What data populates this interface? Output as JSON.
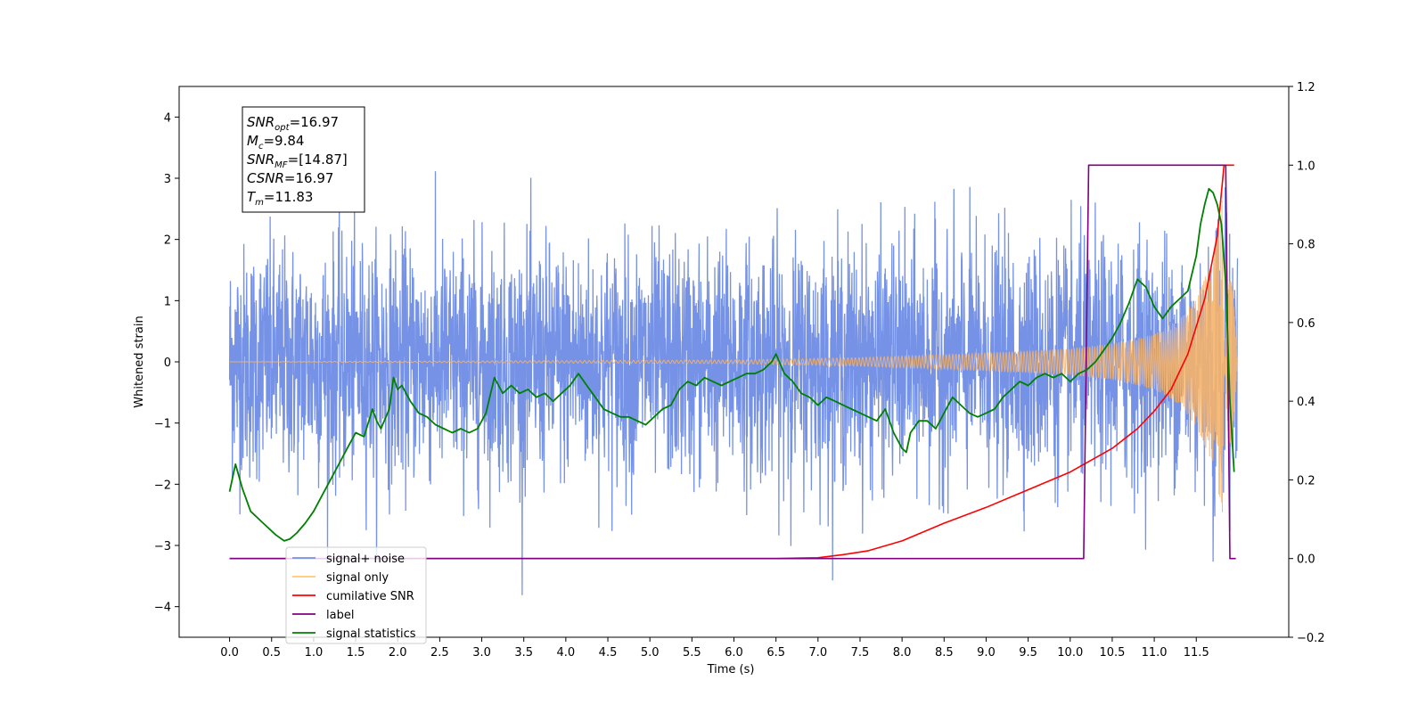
{
  "chart_data": {
    "type": "line",
    "title": "",
    "xlabel": "Time (s)",
    "ylabel": "Whitened strain",
    "xlim": [
      -0.6,
      12.6
    ],
    "ylim": [
      -4.5,
      4.5
    ],
    "y2lim": [
      -0.2,
      1.2
    ],
    "grid": false,
    "legend_placement": "lower-left",
    "x_ticks": [
      "0.0",
      "0.5",
      "1.0",
      "1.5",
      "2.0",
      "2.5",
      "3.0",
      "3.5",
      "4.0",
      "4.5",
      "5.0",
      "5.5",
      "6.0",
      "6.5",
      "7.0",
      "7.5",
      "8.0",
      "8.5",
      "9.0",
      "9.5",
      "10.0",
      "10.5",
      "11.0",
      "11.5"
    ],
    "y_ticks": [
      "−4",
      "−3",
      "−2",
      "−1",
      "0",
      "1",
      "2",
      "3",
      "4"
    ],
    "y2_ticks": [
      "−0.2",
      "0.0",
      "0.2",
      "0.4",
      "0.6",
      "0.8",
      "1.0",
      "1.2"
    ],
    "annotation": {
      "lines": [
        {
          "base": "SNR",
          "sub": "opt",
          "value": "=16.97"
        },
        {
          "base": "M",
          "sub": "c",
          "value": "=9.84"
        },
        {
          "base": "SNR",
          "sub": "MF",
          "value": "=[14.87]"
        },
        {
          "base": "CSNR",
          "sub": "",
          "value": "=16.97"
        },
        {
          "base": "T",
          "sub": "m",
          "value": "=11.83"
        }
      ]
    },
    "series": [
      {
        "name": "signal+ noise",
        "color": "#7592e6",
        "axis": "left",
        "description_values": {
          "t_start": 0.0,
          "t_end": 11.99,
          "noise_sigma": 1.0,
          "peak_max": 4.12,
          "peak_min": -4.07
        }
      },
      {
        "name": "signal only",
        "color": "#f5b36a",
        "axis": "left",
        "description_values": {
          "t_start": 0.0,
          "t_end": 11.99,
          "merger_time": 11.83,
          "envelope_points": {
            "t": [
              0.0,
              6.0,
              7.5,
              8.5,
              9.5,
              10.0,
              10.5,
              11.0,
              11.3,
              11.5,
              11.7,
              11.8,
              11.85,
              11.99
            ],
            "amp": [
              0.0,
              0.03,
              0.07,
              0.12,
              0.18,
              0.22,
              0.3,
              0.45,
              0.7,
              1.05,
              1.7,
              2.6,
              2.9,
              0.0
            ]
          }
        }
      },
      {
        "name": "cumilative SNR",
        "color": "#ff0000",
        "axis": "right",
        "t": [
          0.0,
          6.5,
          7.0,
          7.3,
          7.6,
          8.0,
          8.5,
          9.0,
          9.5,
          10.0,
          10.5,
          10.8,
          11.0,
          11.2,
          11.4,
          11.6,
          11.75,
          11.83,
          11.95
        ],
        "values": [
          0.0,
          0.0,
          0.002,
          0.01,
          0.02,
          0.045,
          0.09,
          0.13,
          0.175,
          0.22,
          0.28,
          0.33,
          0.375,
          0.43,
          0.52,
          0.66,
          0.82,
          1.0,
          1.0
        ]
      },
      {
        "name": "label",
        "color": "#800080",
        "axis": "right",
        "t": [
          0.0,
          10.16,
          10.22,
          11.85,
          11.9,
          11.97
        ],
        "values": [
          0.0,
          0.0,
          1.0,
          1.0,
          0.0,
          0.0
        ]
      },
      {
        "name": "signal statistics",
        "color": "#008000",
        "axis": "right",
        "t": [
          0.0,
          0.07,
          0.15,
          0.25,
          0.4,
          0.55,
          0.65,
          0.72,
          0.8,
          0.9,
          1.0,
          1.1,
          1.25,
          1.4,
          1.5,
          1.6,
          1.7,
          1.75,
          1.8,
          1.9,
          1.95,
          2.0,
          2.05,
          2.15,
          2.25,
          2.35,
          2.45,
          2.55,
          2.65,
          2.75,
          2.85,
          2.95,
          3.05,
          3.15,
          3.25,
          3.35,
          3.45,
          3.55,
          3.65,
          3.75,
          3.85,
          3.95,
          4.05,
          4.15,
          4.25,
          4.35,
          4.45,
          4.55,
          4.65,
          4.75,
          4.85,
          4.95,
          5.05,
          5.15,
          5.25,
          5.35,
          5.45,
          5.55,
          5.65,
          5.75,
          5.85,
          5.95,
          6.05,
          6.15,
          6.25,
          6.35,
          6.45,
          6.5,
          6.6,
          6.7,
          6.8,
          6.9,
          7.0,
          7.1,
          7.2,
          7.3,
          7.4,
          7.5,
          7.6,
          7.7,
          7.8,
          7.9,
          8.0,
          8.05,
          8.1,
          8.2,
          8.3,
          8.4,
          8.5,
          8.6,
          8.7,
          8.8,
          8.9,
          9.0,
          9.1,
          9.2,
          9.3,
          9.4,
          9.5,
          9.6,
          9.7,
          9.8,
          9.9,
          10.0,
          10.1,
          10.2,
          10.3,
          10.4,
          10.5,
          10.6,
          10.7,
          10.8,
          10.9,
          11.0,
          11.1,
          11.2,
          11.3,
          11.4,
          11.5,
          11.55,
          11.6,
          11.65,
          11.7,
          11.75,
          11.8,
          11.85,
          11.9,
          11.95
        ],
        "values": [
          0.17,
          0.24,
          0.18,
          0.12,
          0.09,
          0.06,
          0.045,
          0.05,
          0.065,
          0.09,
          0.12,
          0.16,
          0.22,
          0.28,
          0.32,
          0.31,
          0.38,
          0.35,
          0.33,
          0.38,
          0.46,
          0.43,
          0.44,
          0.4,
          0.37,
          0.36,
          0.34,
          0.33,
          0.32,
          0.33,
          0.32,
          0.33,
          0.37,
          0.46,
          0.42,
          0.44,
          0.42,
          0.43,
          0.41,
          0.42,
          0.4,
          0.42,
          0.44,
          0.47,
          0.44,
          0.41,
          0.38,
          0.37,
          0.36,
          0.36,
          0.35,
          0.34,
          0.36,
          0.38,
          0.39,
          0.43,
          0.45,
          0.44,
          0.46,
          0.45,
          0.44,
          0.45,
          0.46,
          0.47,
          0.47,
          0.48,
          0.5,
          0.52,
          0.47,
          0.45,
          0.42,
          0.41,
          0.39,
          0.41,
          0.4,
          0.39,
          0.38,
          0.37,
          0.36,
          0.35,
          0.38,
          0.32,
          0.28,
          0.27,
          0.32,
          0.35,
          0.35,
          0.33,
          0.37,
          0.41,
          0.39,
          0.37,
          0.36,
          0.37,
          0.38,
          0.41,
          0.43,
          0.45,
          0.44,
          0.46,
          0.47,
          0.46,
          0.47,
          0.45,
          0.47,
          0.48,
          0.5,
          0.53,
          0.56,
          0.6,
          0.65,
          0.71,
          0.69,
          0.64,
          0.61,
          0.64,
          0.66,
          0.68,
          0.77,
          0.85,
          0.9,
          0.94,
          0.93,
          0.9,
          0.85,
          0.7,
          0.4,
          0.22
        ]
      }
    ]
  }
}
